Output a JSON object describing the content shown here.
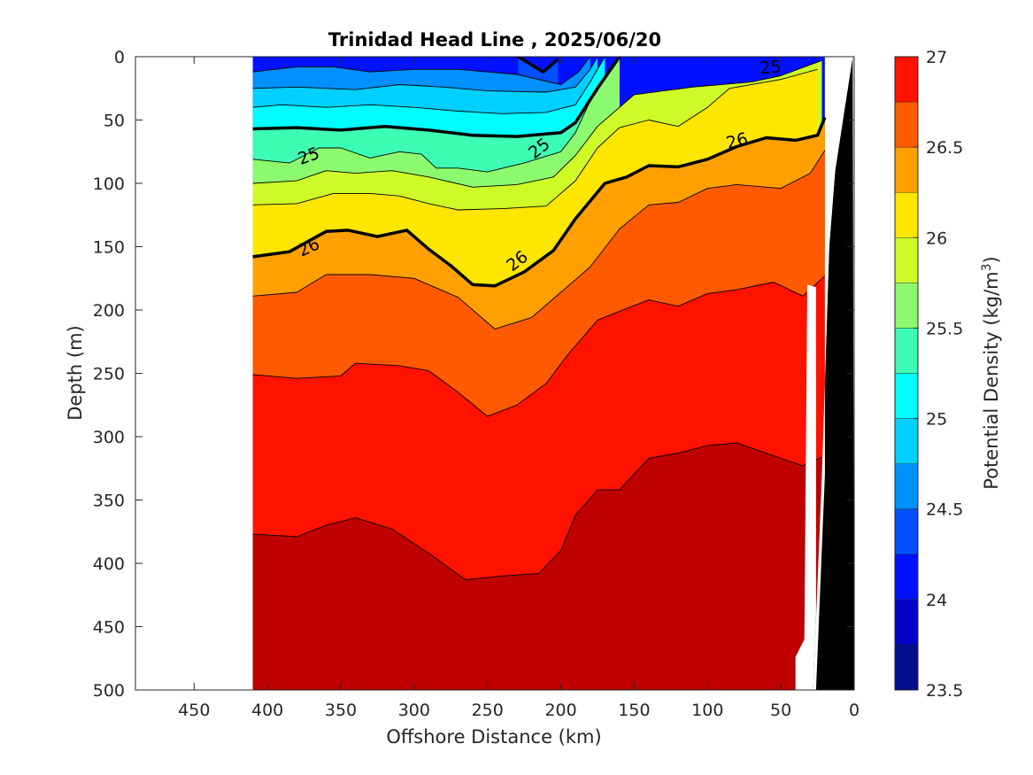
{
  "chart_data": {
    "type": "contour",
    "title": "Trinidad Head Line , 2025/06/20",
    "xlabel": "Offshore Distance (km)",
    "ylabel": "Depth (m)",
    "xlim": [
      490,
      0
    ],
    "ylim": [
      0,
      500
    ],
    "x_reversed": true,
    "y_reversed": true,
    "xticks": [
      450,
      400,
      350,
      300,
      250,
      200,
      150,
      100,
      50,
      0
    ],
    "yticks": [
      0,
      50,
      100,
      150,
      200,
      250,
      300,
      350,
      400,
      450,
      500
    ],
    "data_extent_km": [
      410,
      20
    ],
    "colorbar": {
      "label": "Potential Density (kg/m",
      "label_superscript": "3",
      "label_suffix": ")",
      "min": 23.5,
      "max": 27,
      "step": 0.25,
      "tick_values": [
        27,
        26.5,
        26,
        25.5,
        25,
        24.5,
        24,
        23.5
      ],
      "tick_labels": [
        "27",
        "26.5",
        "26",
        "25.5",
        "25",
        "24.5",
        "24",
        "23.5"
      ],
      "colors": [
        "#000d8d",
        "#0000c8",
        "#0011ff",
        "#0050ff",
        "#0090ff",
        "#00d0ff",
        "#00fcff",
        "#3dfcb4",
        "#8cfa6e",
        "#cefa28",
        "#ffe600",
        "#ffa000",
        "#ff5a00",
        "#ff1200",
        "#c00000"
      ]
    },
    "contour_levels": [
      24,
      24.25,
      24.5,
      24.75,
      25,
      25.25,
      25.5,
      25.75,
      26,
      26.25,
      26.5,
      26.75
    ],
    "isopycnals": [
      {
        "level": 24,
        "points": [
          [
            229,
            0
          ],
          [
            212,
            12
          ],
          [
            202,
            2
          ]
        ]
      },
      {
        "level": 24.25,
        "points": [
          [
            410,
            12
          ],
          [
            380,
            8
          ],
          [
            355,
            8
          ],
          [
            330,
            12
          ],
          [
            300,
            10
          ],
          [
            270,
            10
          ],
          [
            230,
            14
          ],
          [
            200,
            22
          ],
          [
            188,
            12
          ],
          [
            180,
            0
          ]
        ]
      },
      {
        "level": 24.5,
        "points": [
          [
            410,
            25
          ],
          [
            380,
            24
          ],
          [
            340,
            26
          ],
          [
            310,
            22
          ],
          [
            280,
            24
          ],
          [
            250,
            27
          ],
          [
            210,
            28
          ],
          [
            190,
            24
          ],
          [
            180,
            10
          ],
          [
            175,
            0
          ]
        ]
      },
      {
        "level": 24.75,
        "points": [
          [
            410,
            40
          ],
          [
            390,
            38
          ],
          [
            360,
            40
          ],
          [
            330,
            38
          ],
          [
            300,
            40
          ],
          [
            270,
            43
          ],
          [
            240,
            45
          ],
          [
            210,
            44
          ],
          [
            190,
            38
          ],
          [
            180,
            20
          ],
          [
            170,
            0
          ]
        ]
      },
      {
        "level": 25,
        "points": [
          [
            410,
            57
          ],
          [
            380,
            56
          ],
          [
            350,
            58
          ],
          [
            320,
            55
          ],
          [
            290,
            58
          ],
          [
            260,
            62
          ],
          [
            230,
            63
          ],
          [
            200,
            60
          ],
          [
            190,
            52
          ],
          [
            175,
            25
          ],
          [
            160,
            0
          ]
        ]
      },
      {
        "level": 25.25,
        "points": [
          [
            410,
            81
          ],
          [
            385,
            84
          ],
          [
            365,
            72
          ],
          [
            350,
            72
          ],
          [
            330,
            80
          ],
          [
            310,
            75
          ],
          [
            295,
            77
          ],
          [
            285,
            88
          ],
          [
            270,
            88
          ],
          [
            250,
            91
          ],
          [
            225,
            84
          ],
          [
            200,
            75
          ],
          [
            190,
            60
          ],
          [
            178,
            30
          ],
          [
            160,
            0
          ]
        ]
      },
      {
        "level": 25.5,
        "points": [
          [
            410,
            100
          ],
          [
            380,
            98
          ],
          [
            360,
            90
          ],
          [
            340,
            92
          ],
          [
            315,
            90
          ],
          [
            290,
            95
          ],
          [
            260,
            103
          ],
          [
            230,
            101
          ],
          [
            205,
            95
          ],
          [
            190,
            78
          ],
          [
            175,
            55
          ],
          [
            150,
            30
          ],
          [
            110,
            24
          ],
          [
            70,
            20
          ],
          [
            50,
            15
          ],
          [
            22,
            3
          ]
        ]
      },
      {
        "level": 25.75,
        "points": [
          [
            410,
            117
          ],
          [
            380,
            116
          ],
          [
            355,
            108
          ],
          [
            330,
            108
          ],
          [
            310,
            110
          ],
          [
            290,
            116
          ],
          [
            270,
            121
          ],
          [
            240,
            120
          ],
          [
            210,
            118
          ],
          [
            190,
            98
          ],
          [
            175,
            72
          ],
          [
            160,
            56
          ],
          [
            140,
            50
          ],
          [
            120,
            55
          ],
          [
            100,
            40
          ],
          [
            85,
            25
          ],
          [
            50,
            18
          ],
          [
            25,
            10
          ]
        ]
      },
      {
        "level": 26,
        "points": [
          [
            410,
            158
          ],
          [
            385,
            154
          ],
          [
            360,
            138
          ],
          [
            345,
            137
          ],
          [
            325,
            142
          ],
          [
            305,
            137
          ],
          [
            290,
            152
          ],
          [
            275,
            165
          ],
          [
            260,
            180
          ],
          [
            245,
            181
          ],
          [
            225,
            170
          ],
          [
            205,
            153
          ],
          [
            190,
            128
          ],
          [
            170,
            100
          ],
          [
            155,
            95
          ],
          [
            140,
            86
          ],
          [
            120,
            87
          ],
          [
            100,
            81
          ],
          [
            80,
            71
          ],
          [
            60,
            64
          ],
          [
            40,
            66
          ],
          [
            25,
            62
          ],
          [
            20,
            48
          ]
        ]
      },
      {
        "level": 26.25,
        "points": [
          [
            410,
            189
          ],
          [
            380,
            186
          ],
          [
            360,
            172
          ],
          [
            330,
            172
          ],
          [
            300,
            175
          ],
          [
            270,
            190
          ],
          [
            245,
            215
          ],
          [
            220,
            206
          ],
          [
            200,
            186
          ],
          [
            180,
            166
          ],
          [
            160,
            136
          ],
          [
            140,
            117
          ],
          [
            120,
            115
          ],
          [
            100,
            104
          ],
          [
            80,
            101
          ],
          [
            50,
            104
          ],
          [
            30,
            92
          ],
          [
            20,
            74
          ]
        ]
      },
      {
        "level": 26.5,
        "points": [
          [
            410,
            251
          ],
          [
            380,
            254
          ],
          [
            350,
            252
          ],
          [
            340,
            242
          ],
          [
            310,
            244
          ],
          [
            290,
            248
          ],
          [
            270,
            265
          ],
          [
            250,
            284
          ],
          [
            230,
            275
          ],
          [
            210,
            258
          ],
          [
            195,
            235
          ],
          [
            175,
            208
          ],
          [
            160,
            201
          ],
          [
            140,
            192
          ],
          [
            120,
            197
          ],
          [
            100,
            187
          ],
          [
            80,
            184
          ],
          [
            55,
            178
          ],
          [
            35,
            189
          ],
          [
            20,
            173
          ]
        ]
      },
      {
        "level": 26.75,
        "points": [
          [
            410,
            377
          ],
          [
            380,
            379
          ],
          [
            360,
            370
          ],
          [
            340,
            364
          ],
          [
            315,
            373
          ],
          [
            290,
            392
          ],
          [
            265,
            413
          ],
          [
            240,
            410
          ],
          [
            215,
            408
          ],
          [
            200,
            390
          ],
          [
            190,
            362
          ],
          [
            175,
            342
          ],
          [
            160,
            342
          ],
          [
            140,
            317
          ],
          [
            120,
            313
          ],
          [
            100,
            307
          ],
          [
            80,
            305
          ],
          [
            55,
            315
          ],
          [
            35,
            323
          ],
          [
            20,
            315
          ]
        ]
      }
    ],
    "labels": [
      {
        "text": "25",
        "x": 372,
        "y": 78,
        "angle": -20
      },
      {
        "text": "25",
        "x": 215,
        "y": 72,
        "angle": -38
      },
      {
        "text": "25",
        "x": 57,
        "y": 8,
        "angle": -5
      },
      {
        "text": "26",
        "x": 372,
        "y": 150,
        "angle": -25
      },
      {
        "text": "26",
        "x": 230,
        "y": 161,
        "angle": -38
      },
      {
        "text": "26",
        "x": 80,
        "y": 66,
        "angle": -15
      }
    ]
  }
}
